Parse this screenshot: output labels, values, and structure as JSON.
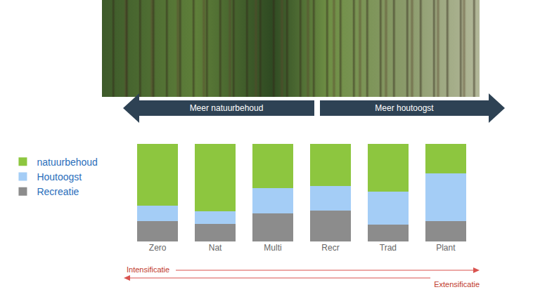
{
  "chart_data": {
    "type": "bar",
    "stacked": true,
    "categories": [
      "Zero",
      "Nat",
      "Multi",
      "Recr",
      "Trad",
      "Plant"
    ],
    "series": [
      {
        "name": "Recreatie",
        "color": "#8c8c8c",
        "values": [
          21,
          18,
          29,
          32,
          17,
          21
        ]
      },
      {
        "name": "Houtoogst",
        "color": "#a4cdf6",
        "values": [
          16,
          13,
          26,
          25,
          34,
          49
        ]
      },
      {
        "name": "natuurbehoud",
        "color": "#8dc63f",
        "values": [
          63,
          69,
          45,
          43,
          49,
          30
        ]
      }
    ],
    "ylim": [
      0,
      100
    ],
    "tick_labels": "x",
    "grid": false,
    "legend": "left",
    "annotations": [
      "Meer natuurbehoud",
      "Meer houtoogst",
      "Intensificatie",
      "Extensificatie"
    ]
  }
}
